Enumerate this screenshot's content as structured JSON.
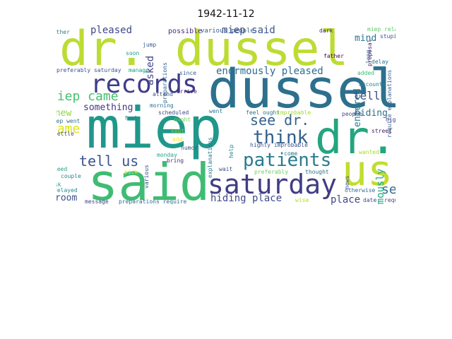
{
  "title": "1942-11-12",
  "words": [
    {
      "text": "dr. dussel",
      "color": "#bcdc32"
    },
    {
      "text": "dussel",
      "color": "#2d708e"
    },
    {
      "text": "miep",
      "color": "#1f988b"
    },
    {
      "text": "records",
      "color": "#3f3c8a"
    },
    {
      "text": "dr.",
      "color": "#25a57f"
    },
    {
      "text": "us",
      "color": "#c1dd2f"
    },
    {
      "text": "said",
      "color": "#3fbc73"
    },
    {
      "text": "saturday",
      "color": "#413d84"
    },
    {
      "text": "patients",
      "color": "#2a7b8e"
    },
    {
      "text": "think",
      "color": "#33608d"
    },
    {
      "text": "tell us",
      "color": "#3a548c"
    },
    {
      "text": "miep came",
      "color": "#46c06f"
    },
    {
      "text": "see dr.",
      "color": "#34618d"
    },
    {
      "text": "came",
      "color": "#dde318"
    },
    {
      "text": "see",
      "color": "#2f6b8e"
    },
    {
      "text": "hiding place",
      "color": "#3e4989"
    },
    {
      "text": "enormously pleased",
      "color": "#2f6c8e"
    },
    {
      "text": "miep said",
      "color": "#3b528b"
    },
    {
      "text": "pleased",
      "color": "#3f4888"
    },
    {
      "text": "asked",
      "color": "#414487"
    },
    {
      "text": "moment",
      "color": "#3e4c8a"
    },
    {
      "text": "mind",
      "color": "#2b758e"
    },
    {
      "text": "entered",
      "color": "#287c8e"
    },
    {
      "text": "tell",
      "color": "#3e4a89"
    },
    {
      "text": "hiding",
      "color": "#2e6e8e"
    },
    {
      "text": "something",
      "color": "#453581"
    },
    {
      "text": "knew",
      "color": "#8ed645"
    },
    {
      "text": "enormously",
      "color": "#22a884"
    },
    {
      "text": "place",
      "color": "#3f4889"
    },
    {
      "text": "room",
      "color": "#3b518b"
    },
    {
      "text": "possible",
      "color": "#472c7a"
    },
    {
      "text": "various people",
      "color": "#365d8d"
    },
    {
      "text": "dark",
      "color": "#482475"
    },
    {
      "text": "miep relayed",
      "color": "#5cc863"
    },
    {
      "text": "stupid",
      "color": "#3b528b"
    },
    {
      "text": "proposal",
      "color": "#482071"
    },
    {
      "text": "long",
      "color": "#31678e"
    },
    {
      "text": "delay",
      "color": "#2c728e"
    },
    {
      "text": "require explanations",
      "color": "#355f8d"
    },
    {
      "text": "either",
      "color": "#27808e"
    },
    {
      "text": "jump",
      "color": "#365c8d"
    },
    {
      "text": "preparations",
      "color": "#33638d"
    },
    {
      "text": "soon",
      "color": "#1f9a8a"
    },
    {
      "text": "father",
      "color": "#440154"
    },
    {
      "text": "added",
      "color": "#3bbb75"
    },
    {
      "text": "accounts",
      "color": "#25838e"
    },
    {
      "text": "preferably saturday",
      "color": "#3b528b"
    },
    {
      "text": "manage",
      "color": "#1e9c89"
    },
    {
      "text": "since",
      "color": "#33638d"
    },
    {
      "text": "attend",
      "color": "#3b528b"
    },
    {
      "text": "arrive",
      "color": "#482878"
    },
    {
      "text": "morning",
      "color": "#2d708e"
    },
    {
      "text": "scheduled",
      "color": "#404688"
    },
    {
      "text": "went",
      "color": "#2a788e"
    },
    {
      "text": "feel ought",
      "color": "#2b758e"
    },
    {
      "text": "improbable",
      "color": "#a2da37"
    },
    {
      "text": "people",
      "color": "#3e4989"
    },
    {
      "text": "highly",
      "color": "#433e85"
    },
    {
      "text": "street",
      "color": "#481769"
    },
    {
      "text": "kept",
      "color": "#7ad151"
    },
    {
      "text": "ought",
      "color": "#73d056"
    },
    {
      "text": "feel",
      "color": "#23898e"
    },
    {
      "text": "add",
      "color": "#fde725"
    },
    {
      "text": "miep went",
      "color": "#2c728e"
    },
    {
      "text": "settle",
      "color": "#3b528b"
    },
    {
      "text": "pick",
      "color": "#f1e51d"
    },
    {
      "text": "monday",
      "color": "#22a785"
    },
    {
      "text": "humor",
      "color": "#39568c"
    },
    {
      "text": "help",
      "color": "#26828e"
    },
    {
      "text": "explanations",
      "color": "#2a788e"
    },
    {
      "text": "highly improbable",
      "color": "#3b528b"
    },
    {
      "text": "come",
      "color": "#2d718e"
    },
    {
      "text": "wanted",
      "color": "#a5db36"
    },
    {
      "text": "help either",
      "color": "#6ccd5a"
    },
    {
      "text": "need",
      "color": "#20a386"
    },
    {
      "text": "couple",
      "color": "#25848e"
    },
    {
      "text": "various",
      "color": "#3c4f8a"
    },
    {
      "text": "bring",
      "color": "#46337f"
    },
    {
      "text": "wait",
      "color": "#3c508b"
    },
    {
      "text": "preferably",
      "color": "#6ece58"
    },
    {
      "text": "thought",
      "color": "#2c718e"
    },
    {
      "text": "news",
      "color": "#3b528b"
    },
    {
      "text": "otherwise",
      "color": "#2f6b8e"
    },
    {
      "text": "ask",
      "color": "#1fa088"
    },
    {
      "text": "relayed",
      "color": "#238a8d"
    },
    {
      "text": "message",
      "color": "#404588"
    },
    {
      "text": "preparations require",
      "color": "#2f6c8e"
    },
    {
      "text": "wise",
      "color": "#b5de2b"
    },
    {
      "text": "date",
      "color": "#3e4a89"
    },
    {
      "text": "require",
      "color": "#3f4788"
    }
  ]
}
